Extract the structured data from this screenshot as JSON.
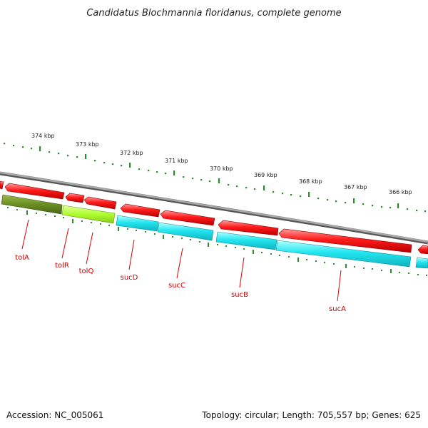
{
  "title": "Candidatus Blochmannia floridanus, complete genome",
  "scale_labels": [
    {
      "pos_kbp": 374,
      "text": "374 kbp"
    },
    {
      "pos_kbp": 373,
      "text": "373 kbp"
    },
    {
      "pos_kbp": 372,
      "text": "372 kbp"
    },
    {
      "pos_kbp": 371,
      "text": "371 kbp"
    },
    {
      "pos_kbp": 370,
      "text": "370 kbp"
    },
    {
      "pos_kbp": 369,
      "text": "369 kbp"
    },
    {
      "pos_kbp": 368,
      "text": "368 kbp"
    },
    {
      "pos_kbp": 367,
      "text": "367 kbp"
    },
    {
      "pos_kbp": 366,
      "text": "366 kbp"
    }
  ],
  "gene_labels": [
    "tolA",
    "tolR",
    "tolQ",
    "sucD",
    "sucC",
    "sucB",
    "sucA"
  ],
  "colors": {
    "backbone": "#8c8c8c",
    "forward_cds": "#ff1a1a",
    "reverse_cds_cyan": "#22e6f0",
    "reverse_cds_olive": "#6b8e23",
    "reverse_cds_lime": "#adff2f",
    "ticks": "#2e8b2e",
    "gene_label": "#cc0000"
  },
  "footer": {
    "accession": "Accession: NC_005061",
    "summary": "Topology: circular; Length: 705,557 bp; Genes: 625"
  }
}
